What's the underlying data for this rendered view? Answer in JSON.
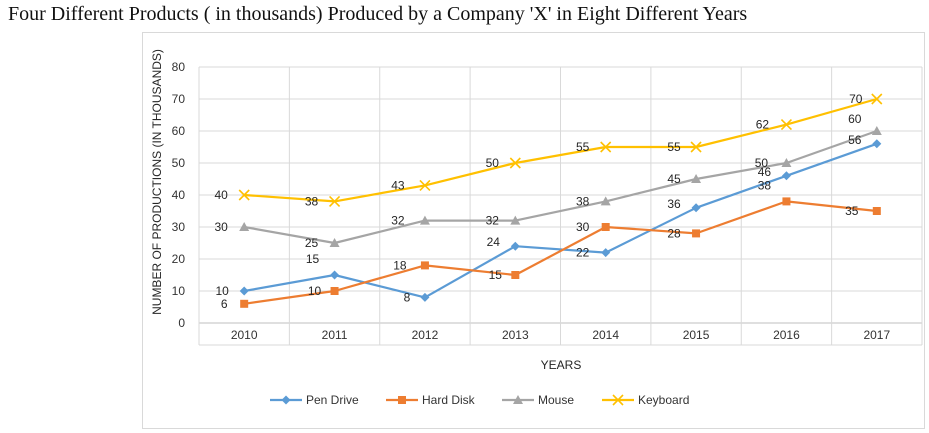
{
  "title": "Four Different Products ( in thousands) Produced by a Company 'X' in Eight Different Years",
  "chart_data": {
    "type": "line",
    "title": "Four Different Products ( in thousands) Produced by a Company 'X' in Eight Different Years",
    "xlabel": "YEARS",
    "ylabel": "NUMBER OF PRODUCTIONS (IN THOUSANDS)",
    "categories": [
      "2010",
      "2011",
      "2012",
      "2013",
      "2014",
      "2015",
      "2016",
      "2017"
    ],
    "ylim": [
      0,
      80
    ],
    "yticks": [
      0,
      10,
      20,
      30,
      40,
      50,
      60,
      70,
      80
    ],
    "grid": true,
    "legend_position": "bottom",
    "series": [
      {
        "name": "Pen Drive",
        "color": "#5b9bd5",
        "marker": "diamond",
        "values": [
          10,
          15,
          8,
          24,
          22,
          36,
          46,
          56
        ]
      },
      {
        "name": "Hard Disk",
        "color": "#ed7d31",
        "marker": "square",
        "values": [
          6,
          10,
          18,
          15,
          30,
          28,
          38,
          35
        ]
      },
      {
        "name": "Mouse",
        "color": "#a5a5a5",
        "marker": "triangle",
        "values": [
          30,
          25,
          32,
          32,
          38,
          45,
          50,
          60
        ]
      },
      {
        "name": "Keyboard",
        "color": "#ffc000",
        "marker": "x",
        "values": [
          40,
          38,
          43,
          50,
          55,
          55,
          62,
          70
        ]
      }
    ]
  }
}
